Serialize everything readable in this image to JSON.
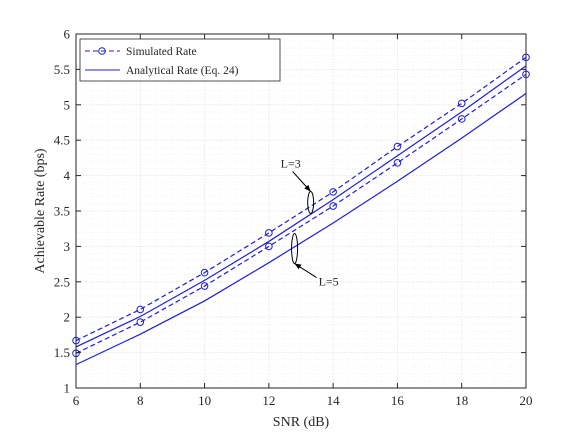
{
  "chart_data": {
    "type": "line",
    "xlabel": "SNR (dB)",
    "ylabel": "Achievable Rate (bps)",
    "xlim": [
      6,
      20
    ],
    "ylim": [
      1,
      6
    ],
    "xticks": [
      6,
      8,
      10,
      12,
      14,
      16,
      18,
      20
    ],
    "yticks": [
      1,
      1.5,
      2,
      2.5,
      3,
      3.5,
      4,
      4.5,
      5,
      5.5,
      6
    ],
    "grid": true,
    "minor_grid": true,
    "legend_position": "top-left",
    "colors": {
      "series": "#1f1fd6",
      "axis": "#262626",
      "grid": "#dcdcdc",
      "minor_grid": "#ececec"
    },
    "legend": [
      {
        "label": "Simulated Rate",
        "style": "dashed-circle"
      },
      {
        "label": "Analytical Rate (Eq. 24)",
        "style": "solid"
      }
    ],
    "x": [
      6,
      8,
      10,
      12,
      14,
      16,
      18,
      20
    ],
    "series": [
      {
        "group": "L=3",
        "kind": "Simulated Rate",
        "dashed": true,
        "markers": true,
        "values": [
          1.67,
          2.11,
          2.63,
          3.19,
          3.77,
          4.41,
          5.02,
          5.67
        ]
      },
      {
        "group": "L=3",
        "kind": "Analytical Rate (Eq. 24)",
        "dashed": false,
        "markers": false,
        "values": [
          1.58,
          2.01,
          2.52,
          3.07,
          3.66,
          4.28,
          4.9,
          5.55
        ]
      },
      {
        "group": "L=5",
        "kind": "Simulated Rate",
        "dashed": true,
        "markers": true,
        "values": [
          1.49,
          1.93,
          2.44,
          3.0,
          3.57,
          4.18,
          4.8,
          5.43
        ]
      },
      {
        "group": "L=5",
        "kind": "Analytical Rate (Eq. 24)",
        "dashed": false,
        "markers": false,
        "values": [
          1.33,
          1.76,
          2.23,
          2.77,
          3.33,
          3.92,
          4.53,
          5.16
        ]
      }
    ],
    "annotations": [
      {
        "text": "L=3",
        "target_x": 13.3,
        "target_y": 3.62
      },
      {
        "text": "L=5",
        "target_x": 12.8,
        "target_y": 2.97
      }
    ]
  }
}
